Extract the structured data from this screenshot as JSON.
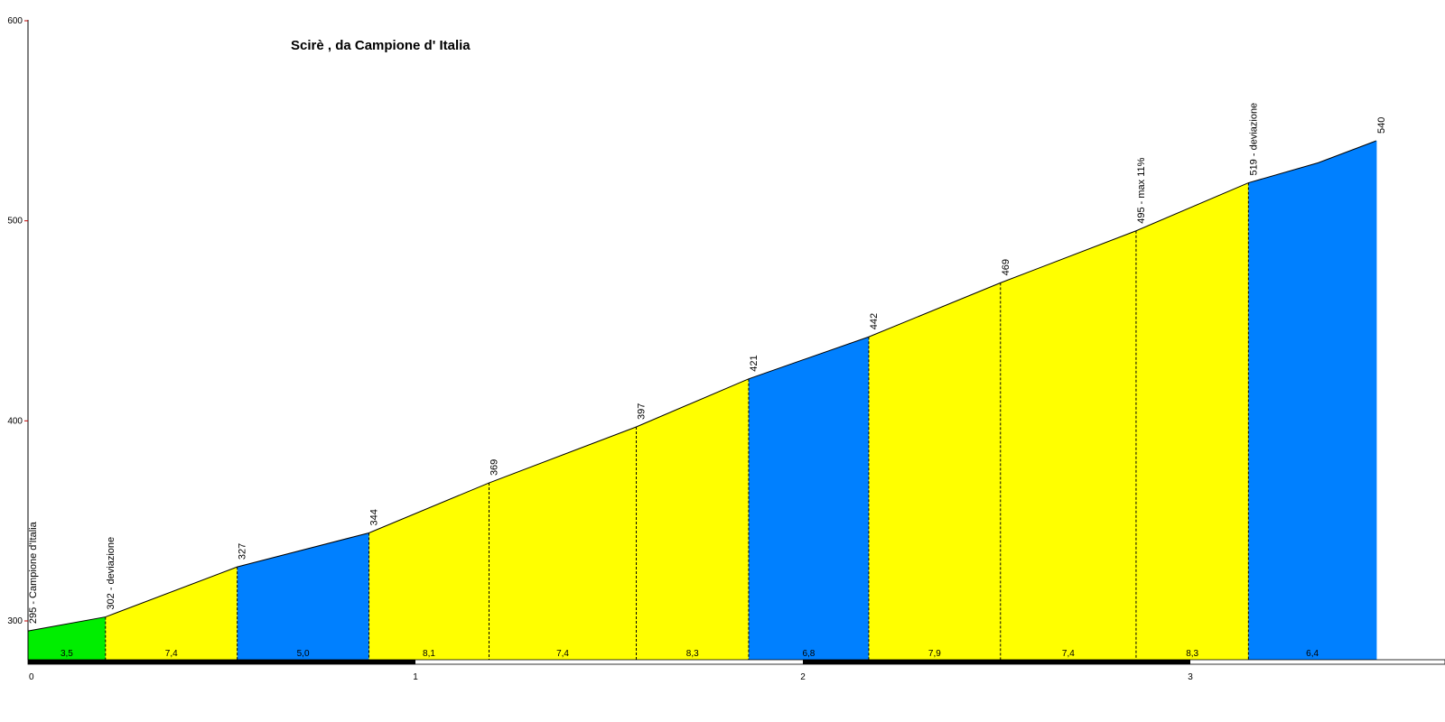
{
  "chart_data": {
    "type": "area",
    "title": "Scirè , da Campione d' Italia",
    "xlabel": "",
    "ylabel": "",
    "xlim": [
      0,
      3.65
    ],
    "ylim": [
      280,
      600
    ],
    "y_ticks": [
      300,
      400,
      500,
      600
    ],
    "x_ticks": [
      0,
      1,
      2,
      3
    ],
    "points": [
      {
        "x": 0.0,
        "y": 295,
        "label": "295 - Campione d'Italia"
      },
      {
        "x": 0.2,
        "y": 302,
        "label": "302 - deviazione"
      },
      {
        "x": 0.54,
        "y": 327,
        "label": "327"
      },
      {
        "x": 0.88,
        "y": 344,
        "label": "344"
      },
      {
        "x": 1.19,
        "y": 369,
        "label": "369"
      },
      {
        "x": 1.57,
        "y": 397,
        "label": "397"
      },
      {
        "x": 1.86,
        "y": 421,
        "label": "421"
      },
      {
        "x": 2.17,
        "y": 442,
        "label": "442"
      },
      {
        "x": 2.51,
        "y": 469,
        "label": "469"
      },
      {
        "x": 2.86,
        "y": 495,
        "label": "495 - max 11%"
      },
      {
        "x": 3.15,
        "y": 519,
        "label": "519 - deviazione"
      },
      {
        "x": 3.33,
        "y": 529,
        "label": ""
      },
      {
        "x": 3.48,
        "y": 540,
        "label": "540"
      }
    ],
    "segments": [
      {
        "from": 0.0,
        "to": 0.2,
        "gradient": "3,5",
        "color": "#00ee00"
      },
      {
        "from": 0.2,
        "to": 0.54,
        "gradient": "7,4",
        "color": "#ffff00"
      },
      {
        "from": 0.54,
        "to": 0.88,
        "gradient": "5,0",
        "color": "#0080ff"
      },
      {
        "from": 0.88,
        "to": 1.19,
        "gradient": "8,1",
        "color": "#ffff00"
      },
      {
        "from": 1.19,
        "to": 1.57,
        "gradient": "7,4",
        "color": "#ffff00"
      },
      {
        "from": 1.57,
        "to": 1.86,
        "gradient": "8,3",
        "color": "#ffff00"
      },
      {
        "from": 1.86,
        "to": 2.17,
        "gradient": "6,8",
        "color": "#0080ff"
      },
      {
        "from": 2.17,
        "to": 2.51,
        "gradient": "7,9",
        "color": "#ffff00"
      },
      {
        "from": 2.51,
        "to": 2.86,
        "gradient": "7,4",
        "color": "#ffff00"
      },
      {
        "from": 2.86,
        "to": 3.15,
        "gradient": "8,3",
        "color": "#ffff00"
      },
      {
        "from": 3.15,
        "to": 3.48,
        "gradient": "6,4",
        "color": "#0080ff"
      }
    ],
    "grid": false,
    "legend": "none"
  }
}
